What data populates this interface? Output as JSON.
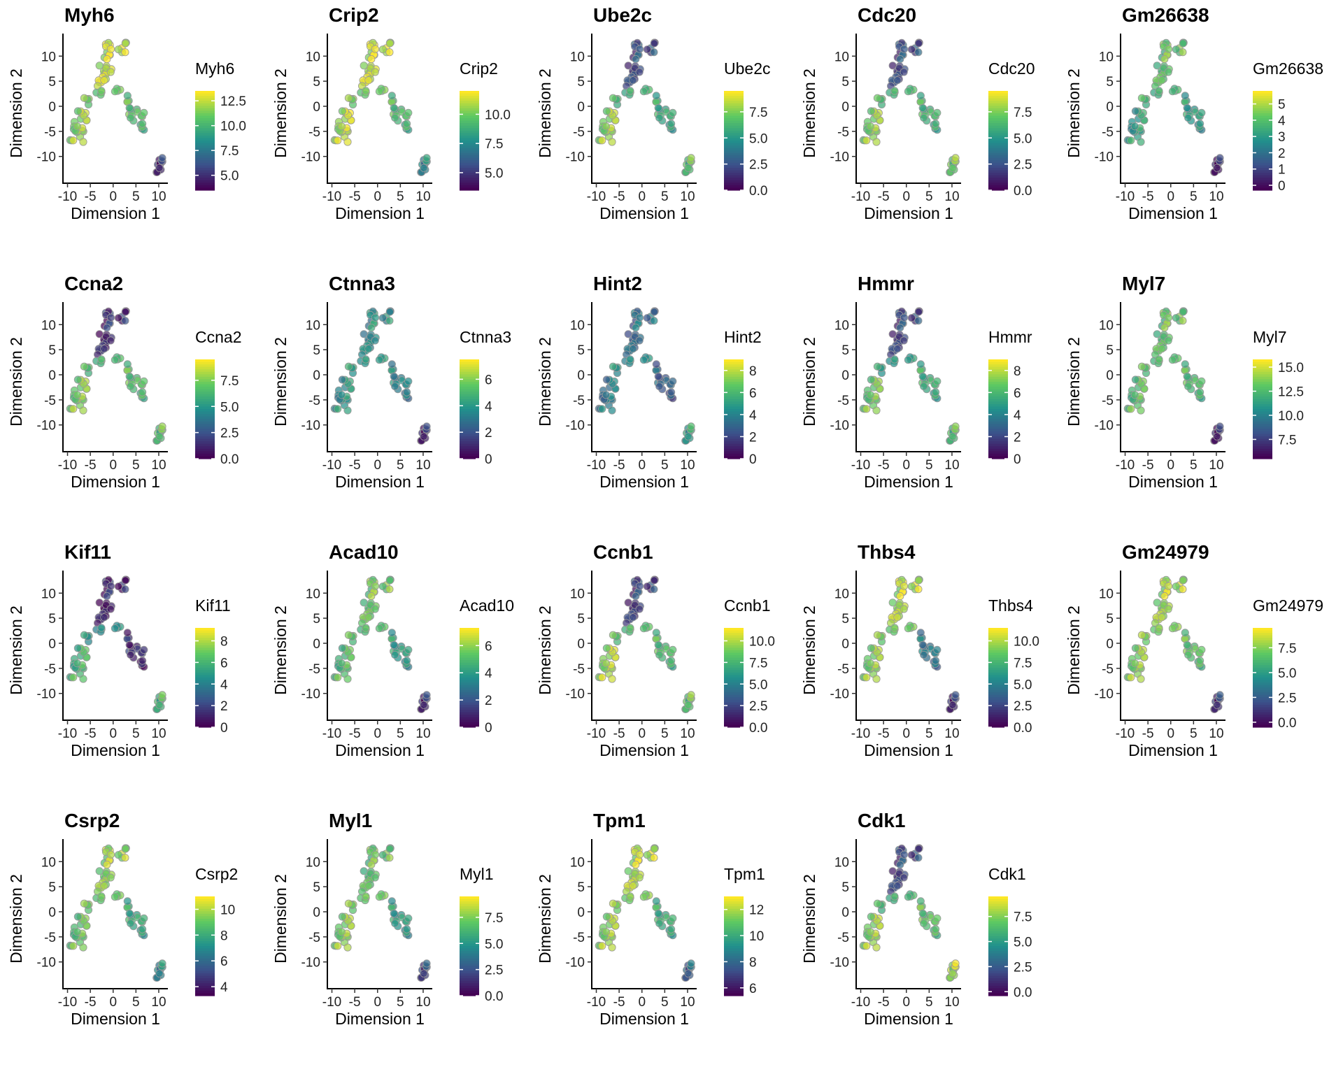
{
  "figure": {
    "axis": {
      "xlabel": "Dimension 1",
      "ylabel": "Dimension 2",
      "xticks": [
        "-10",
        "-5",
        "0",
        "5",
        "10"
      ],
      "yticks": [
        "-10",
        "-5",
        "0",
        "5",
        "10"
      ],
      "xlim": [
        -11,
        12
      ],
      "ylim": [
        -14.5,
        14.5
      ]
    },
    "colormap": {
      "name": "viridis",
      "stops": [
        "#440154",
        "#3b528b",
        "#21918c",
        "#5ec962",
        "#fde725"
      ]
    }
  },
  "chart_data": [
    {
      "type": "scatter",
      "title": "Myh6",
      "legend_title": "Myh6",
      "range": [
        3.5,
        13.5
      ],
      "legend_ticks": [
        5.0,
        7.5,
        10.0,
        12.5
      ],
      "tick_labels": [
        "5.0",
        "7.5",
        "10.0",
        "12.5"
      ],
      "expression": {
        "top": 0.92,
        "left": 0.82,
        "mid": 0.8,
        "right": 0.7,
        "bottom": 0.12
      }
    },
    {
      "type": "scatter",
      "title": "Crip2",
      "legend_title": "Crip2",
      "range": [
        3.5,
        12.0
      ],
      "legend_ticks": [
        5.0,
        7.5,
        10.0
      ],
      "tick_labels": [
        "5.0",
        "7.5",
        "10.0"
      ],
      "expression": {
        "top": 0.92,
        "left": 0.88,
        "mid": 0.82,
        "right": 0.68,
        "bottom": 0.45
      }
    },
    {
      "type": "scatter",
      "title": "Ube2c",
      "legend_title": "Ube2c",
      "range": [
        0,
        9.5
      ],
      "legend_ticks": [
        0.0,
        2.5,
        5.0,
        7.5
      ],
      "tick_labels": [
        "0.0",
        "2.5",
        "5.0",
        "7.5"
      ],
      "expression": {
        "top": 0.22,
        "left": 0.82,
        "mid": 0.7,
        "right": 0.6,
        "bottom": 0.7
      }
    },
    {
      "type": "scatter",
      "title": "Cdc20",
      "legend_title": "Cdc20",
      "range": [
        0,
        9.5
      ],
      "legend_ticks": [
        0.0,
        2.5,
        5.0,
        7.5
      ],
      "tick_labels": [
        "0.0",
        "2.5",
        "5.0",
        "7.5"
      ],
      "expression": {
        "top": 0.22,
        "left": 0.8,
        "mid": 0.72,
        "right": 0.65,
        "bottom": 0.75
      }
    },
    {
      "type": "scatter",
      "title": "Gm26638",
      "legend_title": "Gm26638",
      "range": [
        -0.3,
        5.8
      ],
      "legend_ticks": [
        0,
        1,
        2,
        3,
        4,
        5
      ],
      "tick_labels": [
        "0",
        "1",
        "2",
        "3",
        "4",
        "5"
      ],
      "expression": {
        "top": 0.72,
        "left": 0.55,
        "mid": 0.7,
        "right": 0.55,
        "bottom": 0.08
      }
    },
    {
      "type": "scatter",
      "title": "Ccna2",
      "legend_title": "Ccna2",
      "range": [
        0,
        9.5
      ],
      "legend_ticks": [
        0.0,
        2.5,
        5.0,
        7.5
      ],
      "tick_labels": [
        "0.0",
        "2.5",
        "5.0",
        "7.5"
      ],
      "expression": {
        "top": 0.12,
        "left": 0.78,
        "mid": 0.72,
        "right": 0.7,
        "bottom": 0.7
      }
    },
    {
      "type": "scatter",
      "title": "Ctnna3",
      "legend_title": "Ctnna3",
      "range": [
        0,
        7.5
      ],
      "legend_ticks": [
        0,
        2,
        4,
        6
      ],
      "tick_labels": [
        "0",
        "2",
        "4",
        "6"
      ],
      "expression": {
        "top": 0.48,
        "left": 0.5,
        "mid": 0.6,
        "right": 0.45,
        "bottom": 0.1
      }
    },
    {
      "type": "scatter",
      "title": "Hint2",
      "legend_title": "Hint2",
      "range": [
        0,
        9
      ],
      "legend_ticks": [
        0,
        2,
        4,
        6,
        8
      ],
      "tick_labels": [
        "0",
        "2",
        "4",
        "6",
        "8"
      ],
      "expression": {
        "top": 0.35,
        "left": 0.4,
        "mid": 0.55,
        "right": 0.3,
        "bottom": 0.55
      }
    },
    {
      "type": "scatter",
      "title": "Hmmr",
      "legend_title": "Hmmr",
      "range": [
        0,
        9
      ],
      "legend_ticks": [
        0,
        2,
        4,
        6,
        8
      ],
      "tick_labels": [
        "0",
        "2",
        "4",
        "6",
        "8"
      ],
      "expression": {
        "top": 0.2,
        "left": 0.75,
        "mid": 0.6,
        "right": 0.62,
        "bottom": 0.68
      }
    },
    {
      "type": "scatter",
      "title": "Myl7",
      "legend_title": "Myl7",
      "range": [
        5.5,
        15.8
      ],
      "legend_ticks": [
        7.5,
        10.0,
        12.5,
        15.0
      ],
      "tick_labels": [
        "7.5",
        "10.0",
        "12.5",
        "15.0"
      ],
      "expression": {
        "top": 0.72,
        "left": 0.7,
        "mid": 0.75,
        "right": 0.68,
        "bottom": 0.08
      }
    },
    {
      "type": "scatter",
      "title": "Kif11",
      "legend_title": "Kif11",
      "range": [
        0,
        9.2
      ],
      "legend_ticks": [
        0,
        2,
        4,
        6,
        8
      ],
      "tick_labels": [
        "0",
        "2",
        "4",
        "6",
        "8"
      ],
      "expression": {
        "top": 0.08,
        "left": 0.65,
        "mid": 0.55,
        "right": 0.12,
        "bottom": 0.65
      }
    },
    {
      "type": "scatter",
      "title": "Acad10",
      "legend_title": "Acad10",
      "range": [
        0,
        7.3
      ],
      "legend_ticks": [
        0,
        2,
        4,
        6
      ],
      "tick_labels": [
        "0",
        "2",
        "4",
        "6"
      ],
      "expression": {
        "top": 0.75,
        "left": 0.68,
        "mid": 0.75,
        "right": 0.55,
        "bottom": 0.12
      }
    },
    {
      "type": "scatter",
      "title": "Ccnb1",
      "legend_title": "Ccnb1",
      "range": [
        0,
        11.5
      ],
      "legend_ticks": [
        0.0,
        2.5,
        5.0,
        7.5,
        10.0
      ],
      "tick_labels": [
        "0.0",
        "2.5",
        "5.0",
        "7.5",
        "10.0"
      ],
      "expression": {
        "top": 0.18,
        "left": 0.85,
        "mid": 0.75,
        "right": 0.68,
        "bottom": 0.72
      }
    },
    {
      "type": "scatter",
      "title": "Thbs4",
      "legend_title": "Thbs4",
      "range": [
        0,
        11.5
      ],
      "legend_ticks": [
        0.0,
        2.5,
        5.0,
        7.5,
        10.0
      ],
      "tick_labels": [
        "0.0",
        "2.5",
        "5.0",
        "7.5",
        "10.0"
      ],
      "expression": {
        "top": 0.88,
        "left": 0.8,
        "mid": 0.82,
        "right": 0.4,
        "bottom": 0.12
      }
    },
    {
      "type": "scatter",
      "title": "Gm24979",
      "legend_title": "Gm24979",
      "range": [
        -0.5,
        9.5
      ],
      "legend_ticks": [
        0.0,
        2.5,
        5.0,
        7.5
      ],
      "tick_labels": [
        "0.0",
        "2.5",
        "5.0",
        "7.5"
      ],
      "expression": {
        "top": 0.85,
        "left": 0.8,
        "mid": 0.85,
        "right": 0.72,
        "bottom": 0.15
      }
    },
    {
      "type": "scatter",
      "title": "Csrp2",
      "legend_title": "Csrp2",
      "range": [
        3.3,
        11
      ],
      "legend_ticks": [
        4,
        6,
        8,
        10
      ],
      "tick_labels": [
        "4",
        "6",
        "8",
        "10"
      ],
      "expression": {
        "top": 0.82,
        "left": 0.72,
        "mid": 0.8,
        "right": 0.6,
        "bottom": 0.45
      }
    },
    {
      "type": "scatter",
      "title": "Myl1",
      "legend_title": "Myl1",
      "range": [
        0,
        9.5
      ],
      "legend_ticks": [
        0.0,
        2.5,
        5.0,
        7.5
      ],
      "tick_labels": [
        "0.0",
        "2.5",
        "5.0",
        "7.5"
      ],
      "expression": {
        "top": 0.72,
        "left": 0.8,
        "mid": 0.82,
        "right": 0.55,
        "bottom": 0.2
      }
    },
    {
      "type": "scatter",
      "title": "Tpm1",
      "legend_title": "Tpm1",
      "range": [
        5.4,
        13
      ],
      "legend_ticks": [
        6,
        8,
        10,
        12
      ],
      "tick_labels": [
        "6",
        "8",
        "10",
        "12"
      ],
      "expression": {
        "top": 0.88,
        "left": 0.82,
        "mid": 0.85,
        "right": 0.62,
        "bottom": 0.3
      }
    },
    {
      "type": "scatter",
      "title": "Cdk1",
      "legend_title": "Cdk1",
      "range": [
        -0.4,
        9.5
      ],
      "legend_ticks": [
        0.0,
        2.5,
        5.0,
        7.5
      ],
      "tick_labels": [
        "0.0",
        "2.5",
        "5.0",
        "7.5"
      ],
      "expression": {
        "top": 0.2,
        "left": 0.82,
        "mid": 0.7,
        "right": 0.72,
        "bottom": 0.85
      }
    }
  ]
}
